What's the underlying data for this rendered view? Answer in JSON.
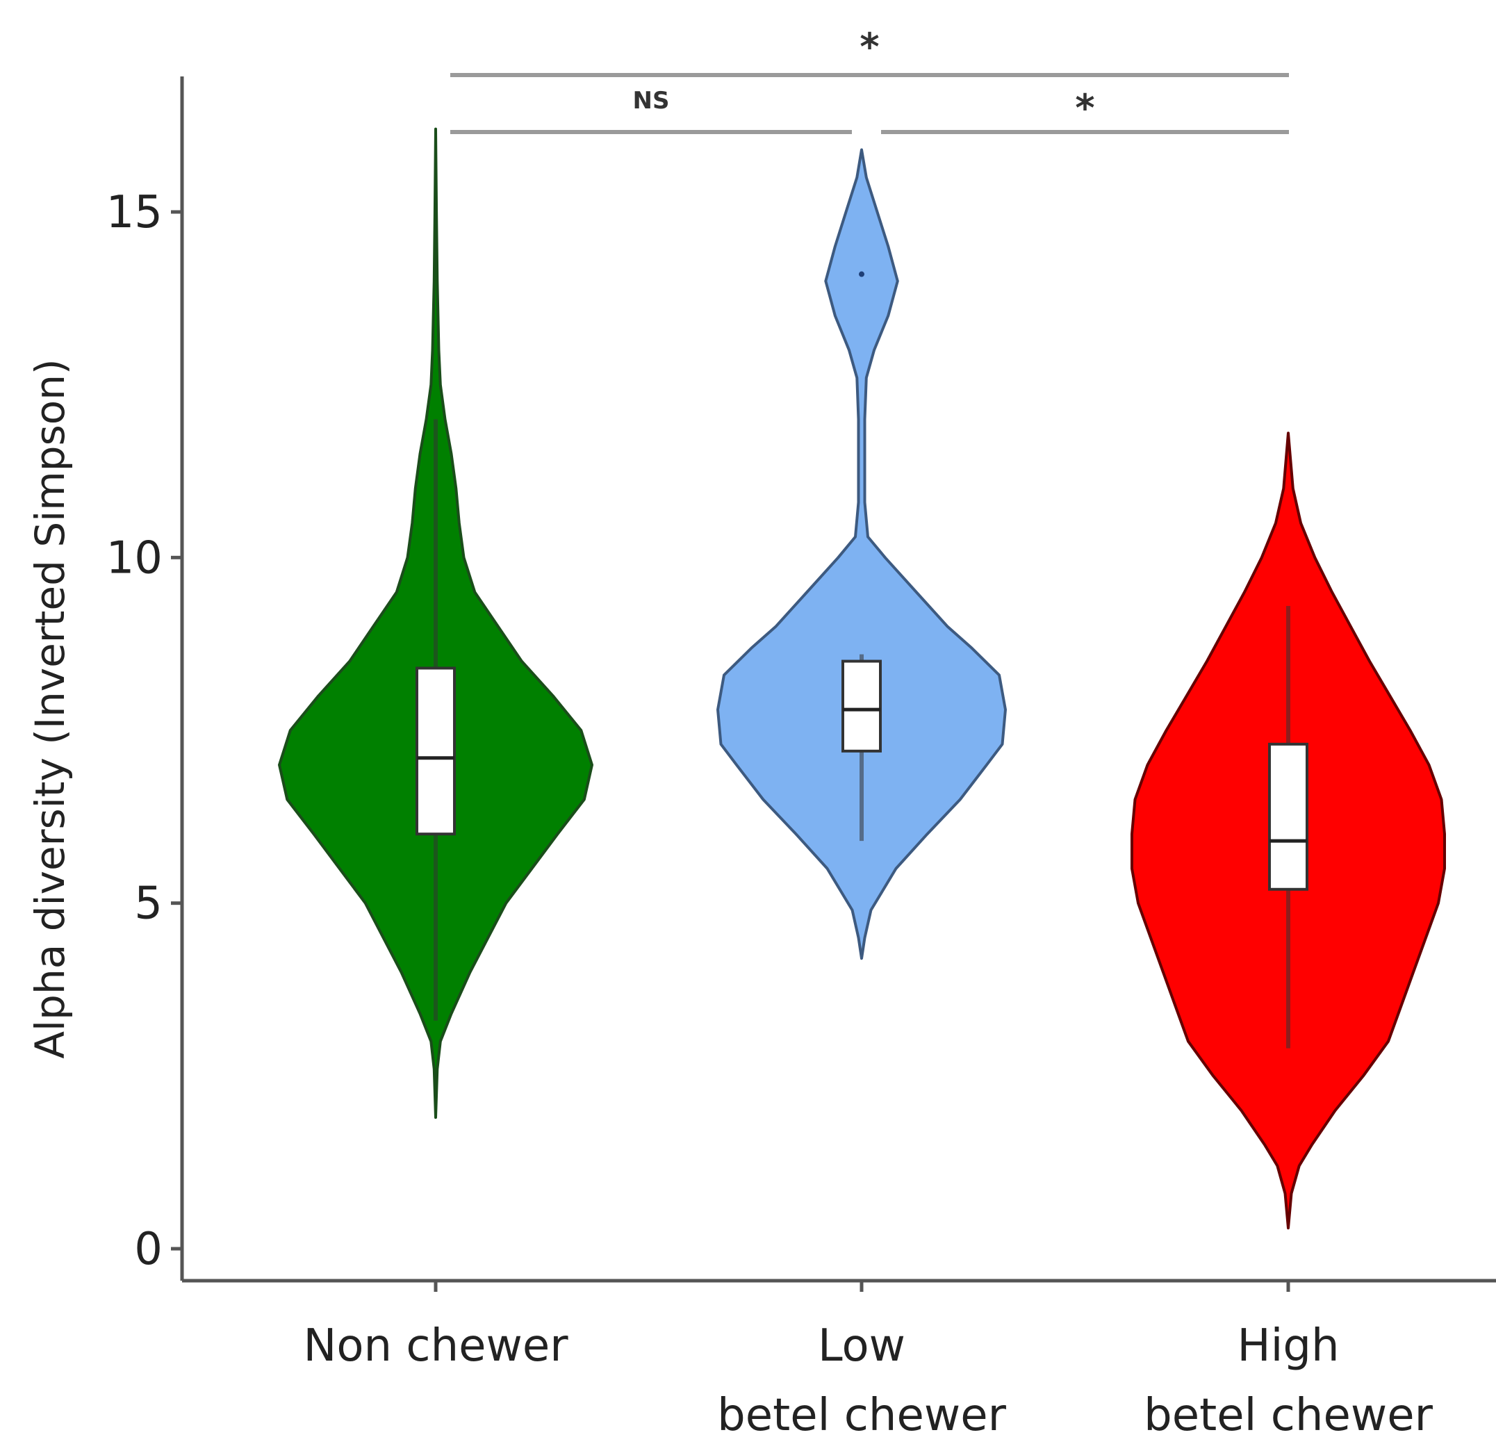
{
  "chart_data": {
    "type": "violin",
    "ylabel": "Alpha diversity (Inverted Simpson)",
    "xlabel": "",
    "ylim": [
      0,
      16.5
    ],
    "yticks": [
      0,
      5,
      10,
      15
    ],
    "grid": false,
    "legend": "none",
    "categories": [
      {
        "lines": [
          "Non chewer"
        ]
      },
      {
        "lines": [
          "Low",
          "betel chewer"
        ]
      },
      {
        "lines": [
          "High",
          "betel chewer"
        ]
      }
    ],
    "groups": [
      {
        "color": "#008000",
        "outline": "#1a4d1a",
        "y_min": 1.9,
        "y_max": 16.2,
        "box": {
          "q1": 6.0,
          "median": 7.1,
          "q3": 8.4,
          "whisker_low": 3.3,
          "whisker_high": 12.0
        },
        "density": [
          [
            1.9,
            0.0
          ],
          [
            2.6,
            0.01
          ],
          [
            3.0,
            0.03
          ],
          [
            3.4,
            0.1
          ],
          [
            4.0,
            0.22
          ],
          [
            5.0,
            0.45
          ],
          [
            6.0,
            0.78
          ],
          [
            6.5,
            0.95
          ],
          [
            7.0,
            1.0
          ],
          [
            7.5,
            0.93
          ],
          [
            8.0,
            0.75
          ],
          [
            8.5,
            0.55
          ],
          [
            9.0,
            0.4
          ],
          [
            9.5,
            0.25
          ],
          [
            10.0,
            0.18
          ],
          [
            10.5,
            0.15
          ],
          [
            11.0,
            0.13
          ],
          [
            11.5,
            0.1
          ],
          [
            12.0,
            0.06
          ],
          [
            12.5,
            0.03
          ],
          [
            13.0,
            0.02
          ],
          [
            14.0,
            0.01
          ],
          [
            15.0,
            0.005
          ],
          [
            16.2,
            0.0
          ]
        ]
      },
      {
        "color": "#7eb2f2",
        "outline": "#3d5a80",
        "y_min": 4.2,
        "y_max": 15.9,
        "box": {
          "q1": 7.2,
          "median": 7.8,
          "q3": 8.5,
          "whisker_low": 5.9,
          "whisker_high": 8.6
        },
        "outliers": [
          14.1
        ],
        "density": [
          [
            4.2,
            0.0
          ],
          [
            4.5,
            0.02
          ],
          [
            4.9,
            0.06
          ],
          [
            5.5,
            0.22
          ],
          [
            6.0,
            0.42
          ],
          [
            6.5,
            0.63
          ],
          [
            7.0,
            0.8
          ],
          [
            7.3,
            0.9
          ],
          [
            7.8,
            0.92
          ],
          [
            8.3,
            0.88
          ],
          [
            8.7,
            0.7
          ],
          [
            9.0,
            0.55
          ],
          [
            9.5,
            0.35
          ],
          [
            10.0,
            0.15
          ],
          [
            10.3,
            0.04
          ],
          [
            10.8,
            0.02
          ],
          [
            12.0,
            0.02
          ],
          [
            12.6,
            0.03
          ],
          [
            13.0,
            0.08
          ],
          [
            13.5,
            0.17
          ],
          [
            14.0,
            0.23
          ],
          [
            14.5,
            0.17
          ],
          [
            15.0,
            0.1
          ],
          [
            15.5,
            0.03
          ],
          [
            15.9,
            0.0
          ]
        ]
      },
      {
        "color": "#ff0000",
        "outline": "#660000",
        "y_min": 0.3,
        "y_max": 11.8,
        "box": {
          "q1": 5.2,
          "median": 5.9,
          "q3": 7.3,
          "whisker_low": 2.9,
          "whisker_high": 9.3
        },
        "density": [
          [
            0.3,
            0.0
          ],
          [
            0.8,
            0.02
          ],
          [
            1.2,
            0.07
          ],
          [
            1.5,
            0.15
          ],
          [
            2.0,
            0.3
          ],
          [
            2.5,
            0.48
          ],
          [
            3.0,
            0.64
          ],
          [
            3.5,
            0.72
          ],
          [
            4.0,
            0.8
          ],
          [
            4.5,
            0.88
          ],
          [
            5.0,
            0.96
          ],
          [
            5.5,
            1.0
          ],
          [
            6.0,
            1.0
          ],
          [
            6.5,
            0.98
          ],
          [
            7.0,
            0.9
          ],
          [
            7.5,
            0.78
          ],
          [
            8.0,
            0.65
          ],
          [
            8.5,
            0.52
          ],
          [
            9.0,
            0.4
          ],
          [
            9.5,
            0.28
          ],
          [
            10.0,
            0.17
          ],
          [
            10.5,
            0.08
          ],
          [
            11.0,
            0.03
          ],
          [
            11.8,
            0.0
          ]
        ]
      }
    ],
    "significance": [
      {
        "from": 0,
        "to": 2,
        "label": "*",
        "level": "upper"
      },
      {
        "from": 0,
        "to": 1,
        "label": "NS",
        "level": "lower"
      },
      {
        "from": 1,
        "to": 2,
        "label": "*",
        "level": "lower"
      }
    ]
  }
}
